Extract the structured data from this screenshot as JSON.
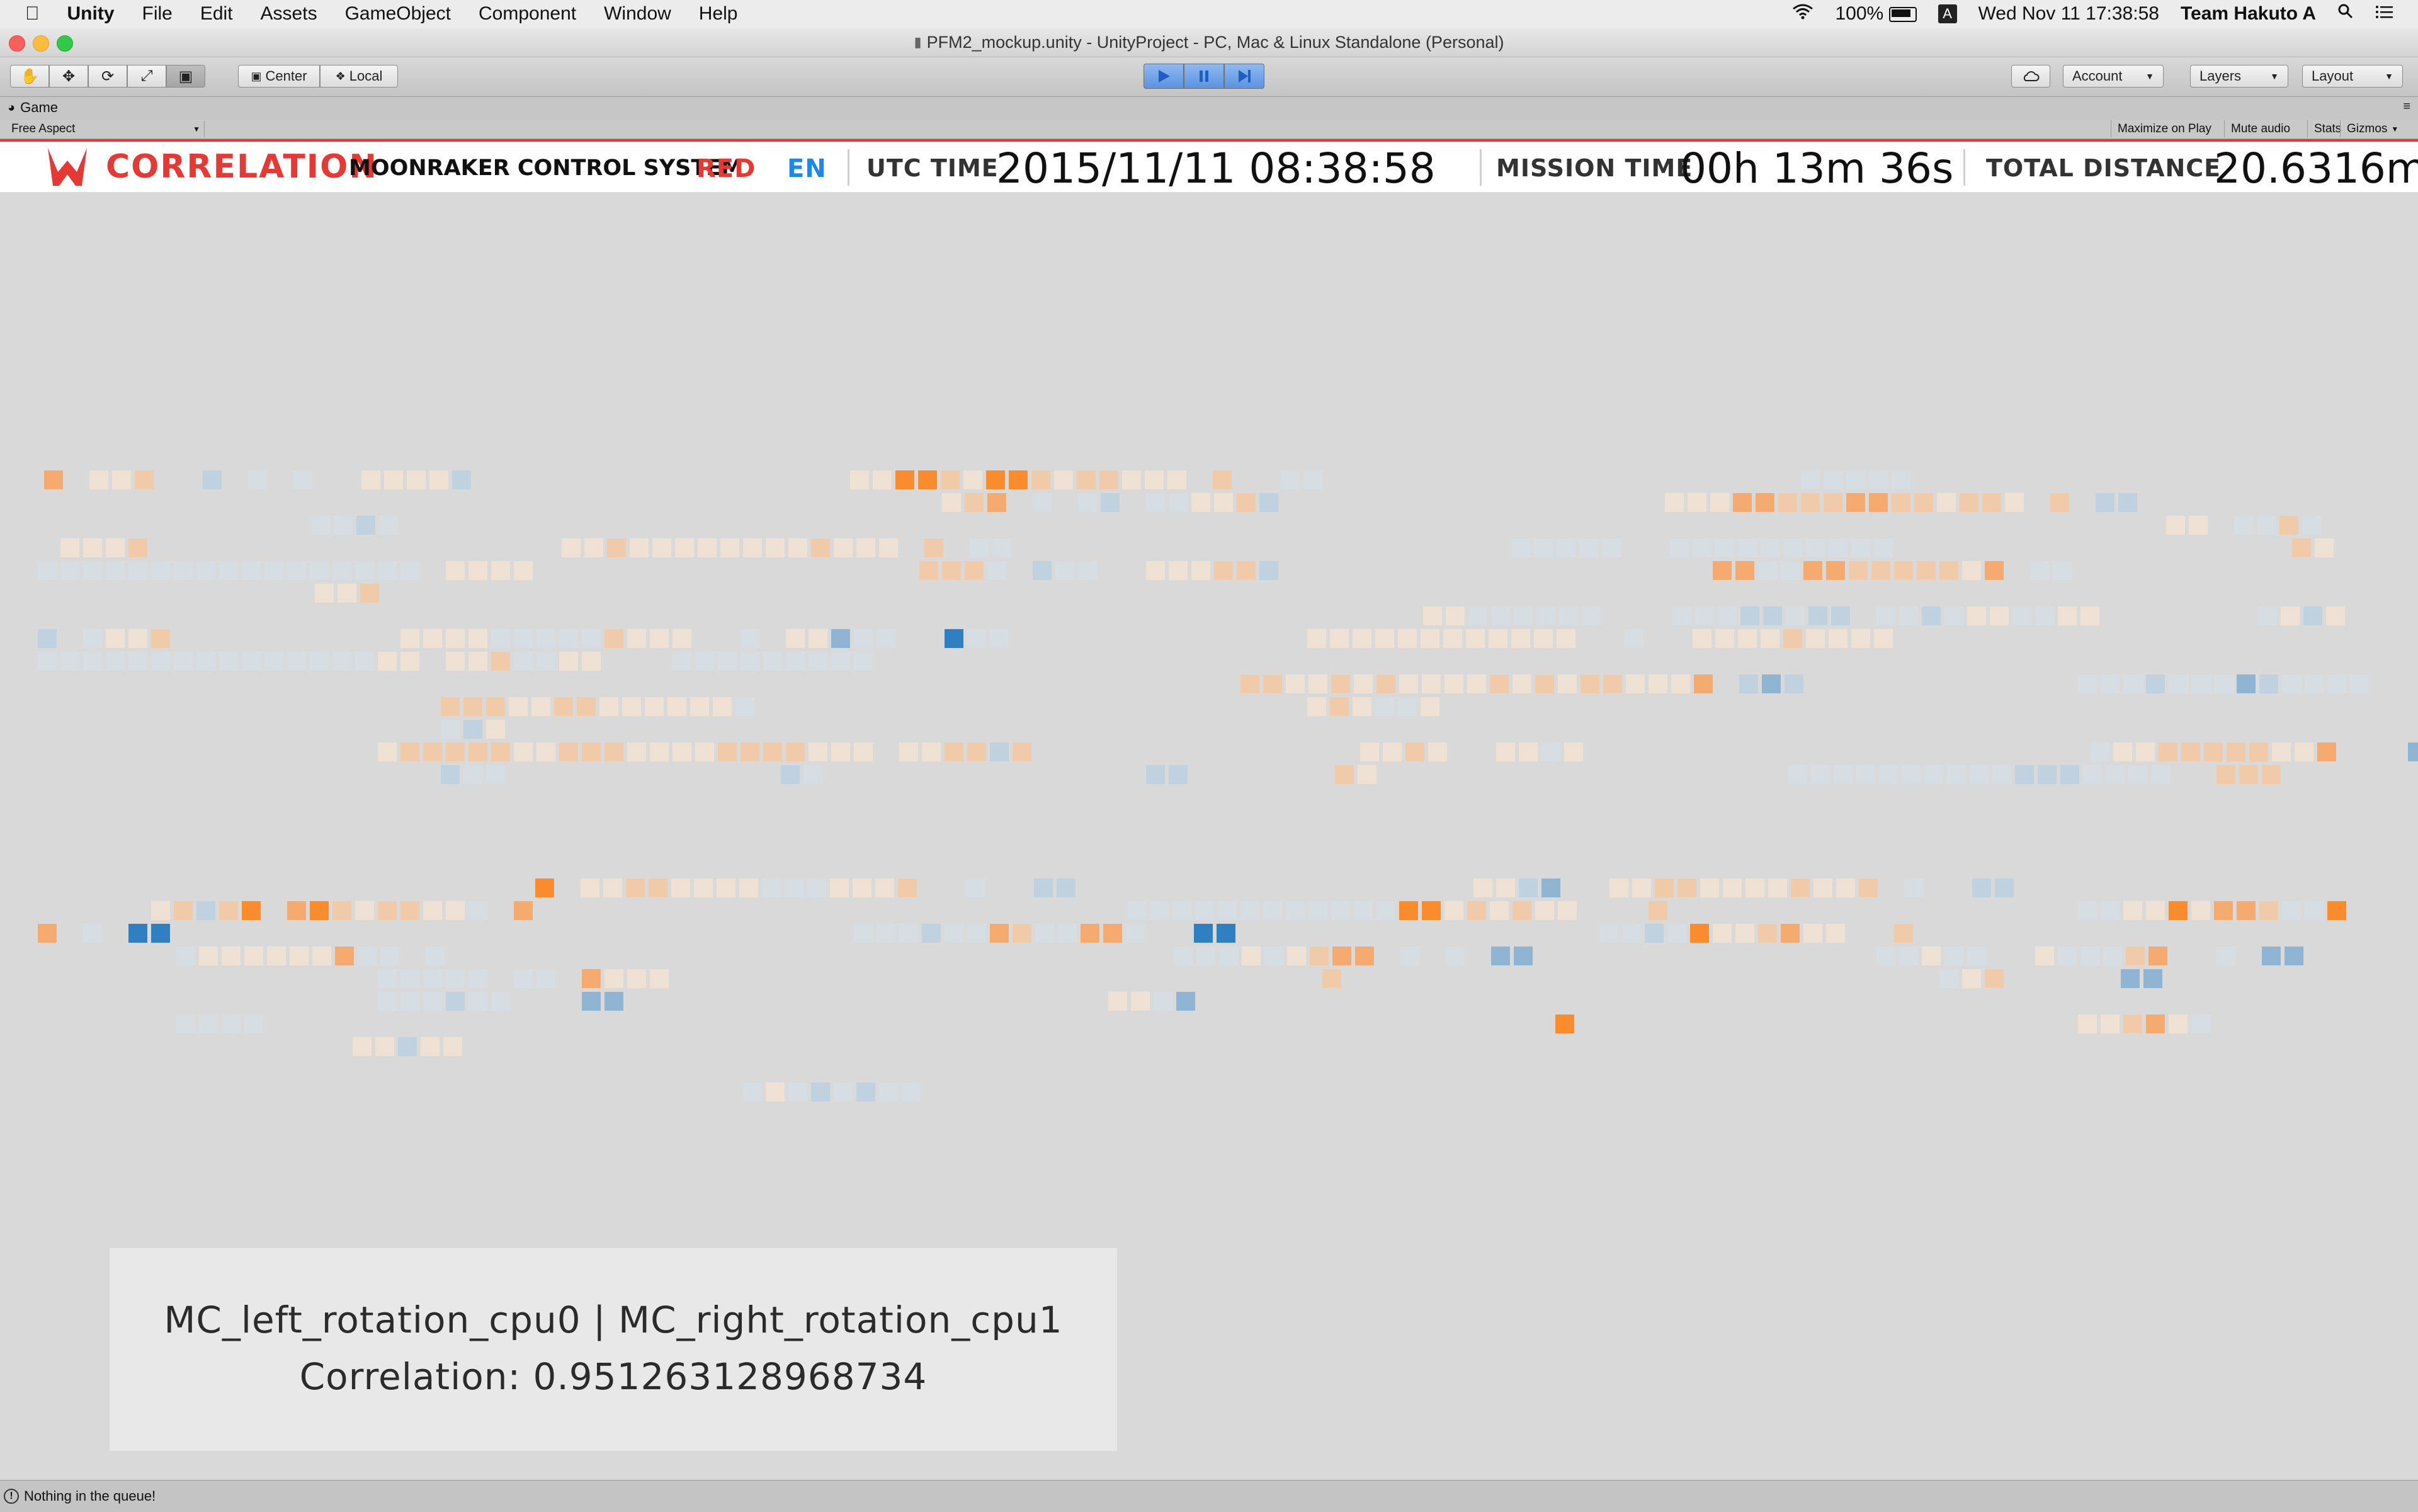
{
  "menubar": {
    "app_name": "Unity",
    "items": [
      "File",
      "Edit",
      "Assets",
      "GameObject",
      "Component",
      "Window",
      "Help"
    ],
    "battery": "100%",
    "input_source": "A",
    "clock": "Wed Nov 11  17:38:58",
    "user": "Team Hakuto A"
  },
  "window": {
    "title": "PFM2_mockup.unity - UnityProject - PC, Mac & Linux Standalone (Personal)"
  },
  "toolbar": {
    "pivot_label": "Center",
    "space_label": "Local",
    "account_label": "Account",
    "layers_label": "Layers",
    "layout_label": "Layout"
  },
  "game_panel": {
    "tab_label": "Game",
    "aspect_label": "Free Aspect",
    "buttons": [
      "Maximize on Play",
      "Mute audio",
      "Stats",
      "Gizmos"
    ]
  },
  "hud": {
    "title": "CORRELATION",
    "system_name": "MOONRAKER CONTROL SYSTEM",
    "team_color": "RED",
    "language": "EN",
    "utc_label": "UTC TIME",
    "utc_value": "2015/11/11 08:38:58",
    "mission_label": "MISSION TIME",
    "mission_value": "00h 13m 36s",
    "distance_label": "TOTAL DISTANCE",
    "distance_value": "20.6316m"
  },
  "correlation": {
    "pair": "MC_left_rotation_cpu0 | MC_right_rotation_cpu1",
    "value_text": "Correlation: 0.951263128968734"
  },
  "status": {
    "message": "Nothing in the queue!"
  },
  "colors": {
    "accent_red": "#e53935",
    "language_blue": "#1e88e5",
    "positive_orange": "#fb8c2e",
    "negative_blue": "#2f7fc1"
  },
  "heatmap_palette": {
    "o1": "#efe1d4",
    "o2": "#f1cba9",
    "o3": "#f5ab70",
    "o4": "#fb8c2e",
    "b1": "#d6dde3",
    "b2": "#c0d1df",
    "b3": "#8fb4d4",
    "b4": "#2f7fc1"
  }
}
